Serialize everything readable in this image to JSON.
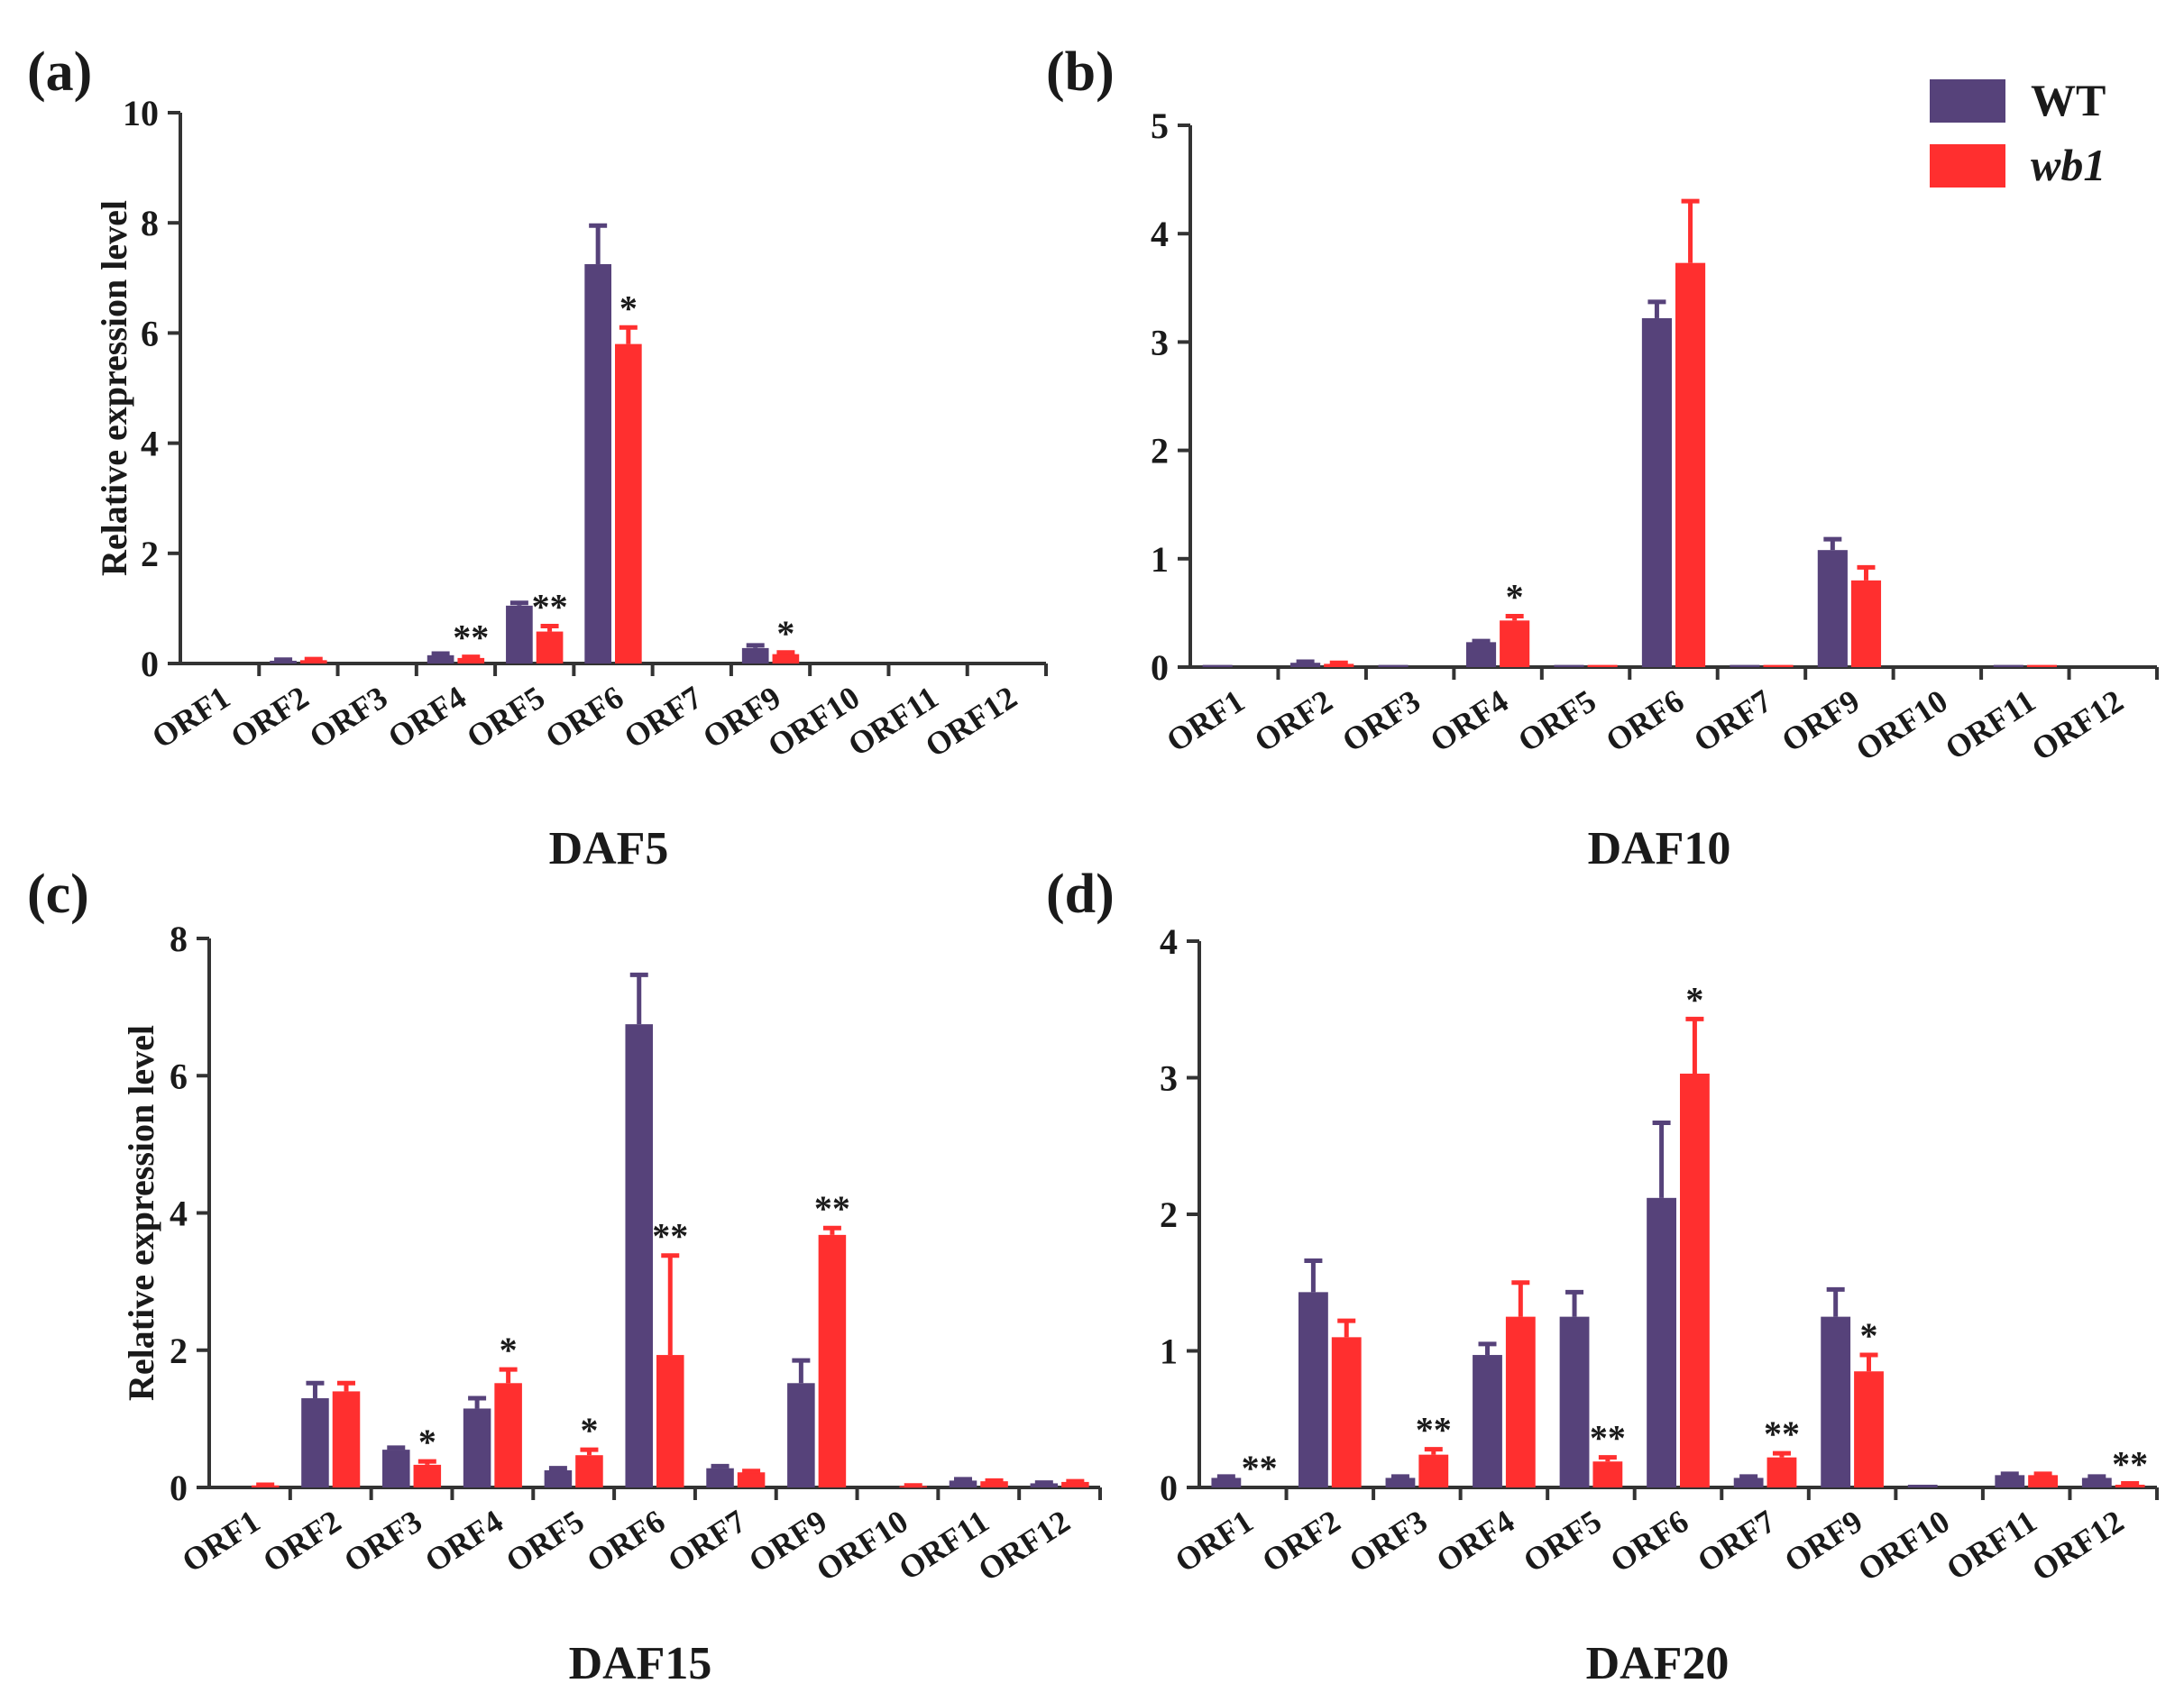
{
  "legend": {
    "position": "top-right",
    "items": [
      {
        "name": "WT",
        "color": "#56427a",
        "italic": false
      },
      {
        "name": "wb1",
        "color": "#ff2f2f",
        "italic": true
      }
    ]
  },
  "chart_data": [
    {
      "panel_label": "(a)",
      "type": "bar",
      "title": "DAF5",
      "xlabel": "DAF5",
      "ylabel": "Relative expression level",
      "ylim": [
        0,
        10
      ],
      "yticks": [
        0,
        2,
        4,
        6,
        8,
        10
      ],
      "categories": [
        "ORF1",
        "ORF2",
        "ORF3",
        "ORF4",
        "ORF5",
        "ORF6",
        "ORF7",
        "ORF9",
        "ORF10",
        "ORF11",
        "ORF12"
      ],
      "series": [
        {
          "name": "WT",
          "values": [
            0,
            0.05,
            0,
            0.15,
            1.05,
            7.25,
            0,
            0.28,
            0,
            0,
            0
          ],
          "errors": [
            0,
            0.02,
            0,
            0.03,
            0.05,
            0.7,
            0,
            0.05,
            0,
            0,
            0
          ],
          "marks": [
            "",
            "",
            "",
            "",
            "",
            "",
            "",
            "",
            "",
            "",
            ""
          ]
        },
        {
          "name": "wb1",
          "values": [
            0,
            0.06,
            0,
            0.1,
            0.58,
            5.8,
            0,
            0.17,
            0,
            0,
            0
          ],
          "errors": [
            0,
            0.02,
            0,
            0.02,
            0.1,
            0.3,
            0,
            0.03,
            0,
            0,
            0
          ],
          "marks": [
            "",
            "",
            "",
            "**",
            "**",
            "*",
            "",
            "*",
            "",
            "",
            ""
          ]
        }
      ]
    },
    {
      "panel_label": "(b)",
      "type": "bar",
      "title": "DAF10",
      "xlabel": "DAF10",
      "ylabel": "",
      "ylim": [
        0,
        5
      ],
      "yticks": [
        0,
        1,
        2,
        3,
        4,
        5
      ],
      "categories": [
        "ORF1",
        "ORF2",
        "ORF3",
        "ORF4",
        "ORF5",
        "ORF6",
        "ORF7",
        "ORF9",
        "ORF10",
        "ORF11",
        "ORF12"
      ],
      "series": [
        {
          "name": "WT",
          "values": [
            0.02,
            0.04,
            0.02,
            0.23,
            0.02,
            3.22,
            0.02,
            1.08,
            0,
            0.02,
            0
          ],
          "errors": [
            0,
            0.01,
            0,
            0.01,
            0,
            0.15,
            0,
            0.1,
            0,
            0,
            0
          ],
          "marks": [
            "",
            "",
            "",
            "",
            "",
            "",
            "",
            "",
            "",
            "",
            ""
          ]
        },
        {
          "name": "wb1",
          "values": [
            0,
            0.03,
            0,
            0.43,
            0.02,
            3.73,
            0.02,
            0.8,
            0,
            0.02,
            0
          ],
          "errors": [
            0,
            0.01,
            0,
            0.04,
            0,
            0.57,
            0,
            0.12,
            0,
            0,
            0
          ],
          "marks": [
            "",
            "",
            "",
            "*",
            "",
            "",
            "",
            "",
            "",
            "",
            ""
          ]
        }
      ]
    },
    {
      "panel_label": "(c)",
      "type": "bar",
      "title": "DAF15",
      "xlabel": "DAF15",
      "ylabel": "Relative expression level",
      "ylim": [
        0,
        8
      ],
      "yticks": [
        0,
        2,
        4,
        6,
        8
      ],
      "categories": [
        "ORF1",
        "ORF2",
        "ORF3",
        "ORF4",
        "ORF5",
        "ORF6",
        "ORF7",
        "ORF9",
        "ORF10",
        "ORF11",
        "ORF12"
      ],
      "series": [
        {
          "name": "WT",
          "values": [
            0,
            1.3,
            0.55,
            1.15,
            0.25,
            6.75,
            0.28,
            1.52,
            0,
            0.1,
            0.06
          ],
          "errors": [
            0,
            0.22,
            0.03,
            0.15,
            0.03,
            0.72,
            0.03,
            0.33,
            0,
            0.02,
            0.01
          ],
          "marks": [
            "",
            "",
            "",
            "",
            "",
            "",
            "",
            "",
            "",
            "",
            ""
          ]
        },
        {
          "name": "wb1",
          "values": [
            0.03,
            1.4,
            0.33,
            1.52,
            0.47,
            1.93,
            0.22,
            3.68,
            0.02,
            0.09,
            0.08
          ],
          "errors": [
            0.01,
            0.12,
            0.05,
            0.2,
            0.08,
            1.45,
            0.02,
            0.1,
            0.01,
            0.01,
            0.01
          ],
          "marks": [
            "",
            "",
            "*",
            "*",
            "*",
            "**",
            "",
            "**",
            "",
            "",
            ""
          ]
        }
      ]
    },
    {
      "panel_label": "(d)",
      "type": "bar",
      "title": "DAF20",
      "xlabel": "DAF20",
      "ylabel": "",
      "ylim": [
        0,
        4
      ],
      "yticks": [
        0,
        1,
        2,
        3,
        4
      ],
      "categories": [
        "ORF1",
        "ORF2",
        "ORF3",
        "ORF4",
        "ORF5",
        "ORF6",
        "ORF7",
        "ORF9",
        "ORF10",
        "ORF11",
        "ORF12"
      ],
      "series": [
        {
          "name": "WT",
          "values": [
            0.07,
            1.43,
            0.07,
            0.97,
            1.25,
            2.12,
            0.07,
            1.25,
            0.02,
            0.09,
            0.07
          ],
          "errors": [
            0.01,
            0.23,
            0.01,
            0.08,
            0.18,
            0.55,
            0.01,
            0.2,
            0,
            0.01,
            0.01
          ],
          "marks": [
            "",
            "",
            "",
            "",
            "",
            "",
            "",
            "",
            "",
            "",
            ""
          ]
        },
        {
          "name": "wb1",
          "values": [
            0,
            1.1,
            0.24,
            1.25,
            0.19,
            3.03,
            0.22,
            0.85,
            0,
            0.09,
            0.02
          ],
          "errors": [
            0,
            0.12,
            0.04,
            0.25,
            0.03,
            0.4,
            0.03,
            0.12,
            0,
            0.01,
            0.01
          ],
          "marks": [
            "**",
            "",
            "**",
            "",
            "**",
            "*",
            "**",
            "*",
            "",
            "",
            "**"
          ]
        }
      ]
    }
  ]
}
